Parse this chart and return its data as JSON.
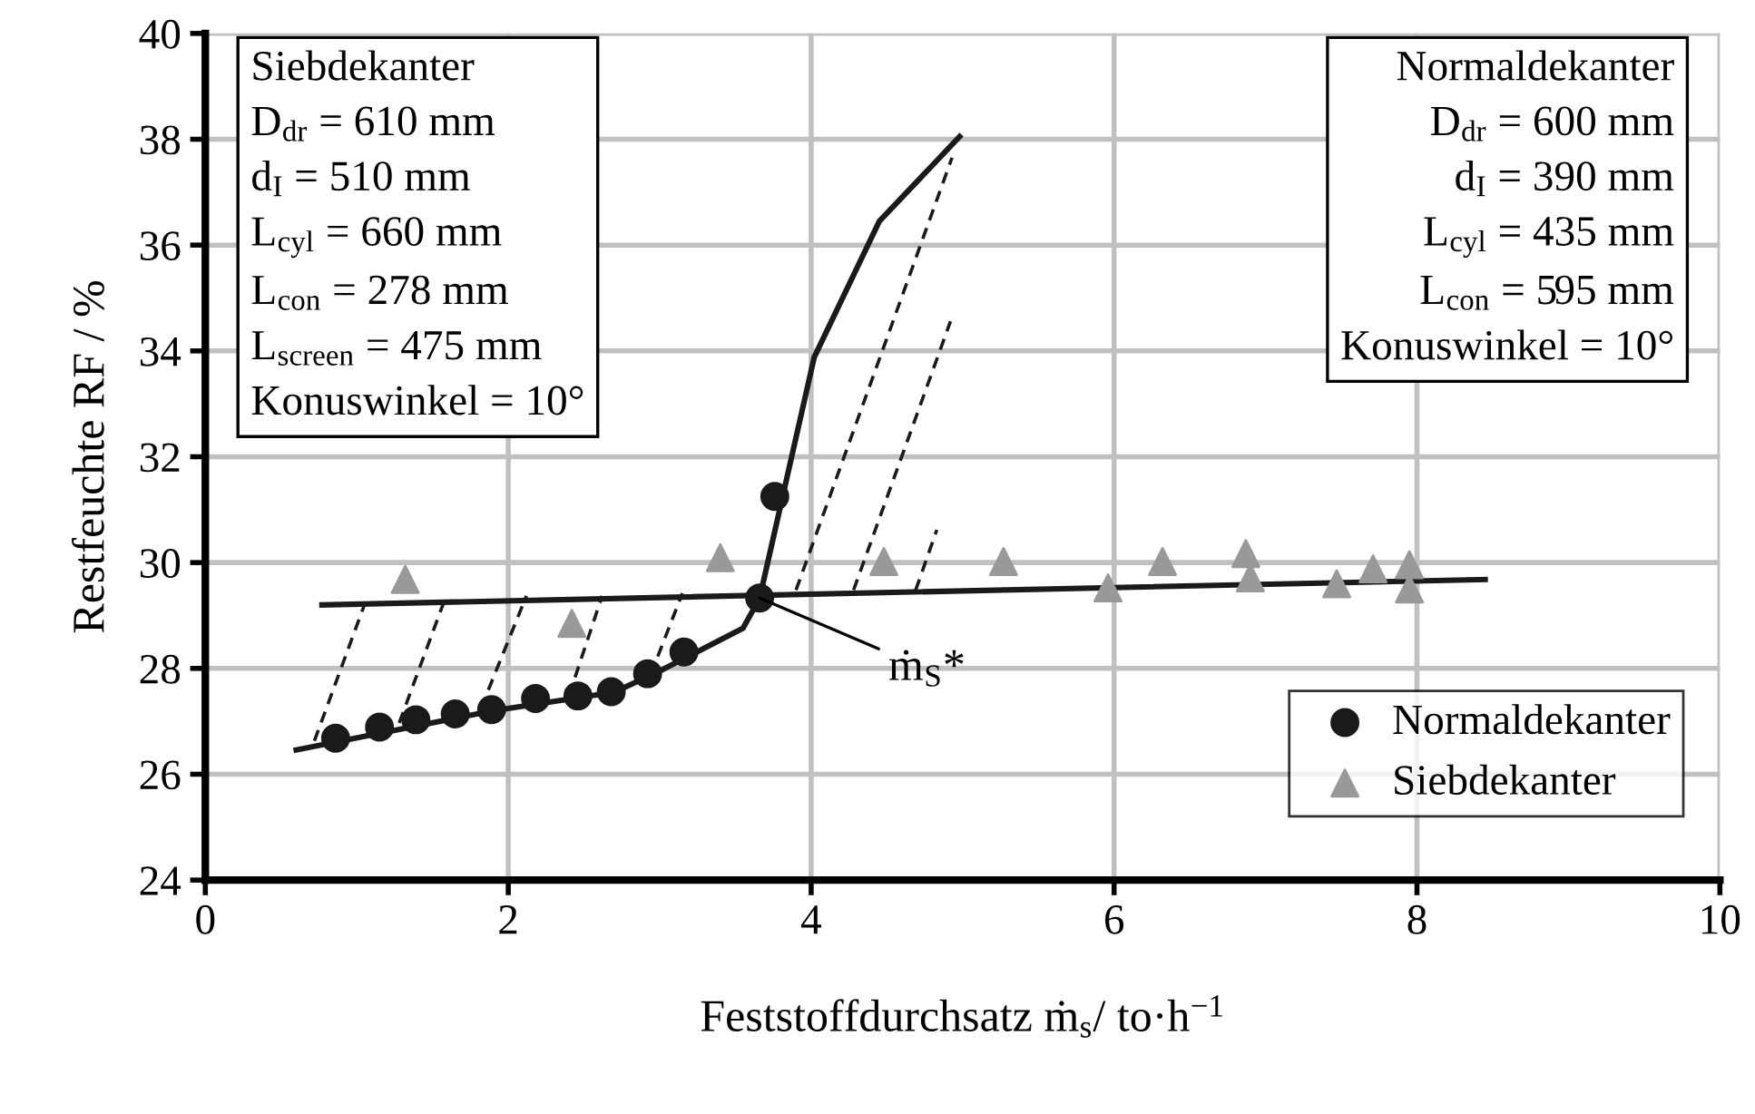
{
  "chart_data": {
    "type": "scatter",
    "xlabel": "Feststoffdurchsatz ṁ$_{s}$/ to·h$^{−1}$",
    "ylabel": "Restfeuchte RF / %",
    "xlim": [
      0,
      10
    ],
    "ylim": [
      24,
      40
    ],
    "xticks": [
      0,
      2,
      4,
      6,
      8,
      10
    ],
    "yticks": [
      24,
      26,
      28,
      30,
      32,
      34,
      36,
      38,
      40
    ],
    "grid": true,
    "legend": "bottom right",
    "series": [
      {
        "name": "Normaldekanter",
        "marker": "circle",
        "color": "#1a1a1a",
        "x": [
          0.86,
          1.15,
          1.39,
          1.65,
          1.89,
          2.18,
          2.46,
          2.68,
          2.92,
          3.16,
          3.66,
          3.76
        ],
        "values": [
          26.68,
          26.89,
          27.03,
          27.14,
          27.22,
          27.43,
          27.48,
          27.56,
          27.9,
          28.31,
          29.33,
          31.25
        ]
      },
      {
        "name": "Siebdekanter",
        "marker": "triangle",
        "color": "#999999",
        "x": [
          1.32,
          2.42,
          3.4,
          4.48,
          5.27,
          5.96,
          6.32,
          6.87,
          6.9,
          7.47,
          7.71,
          7.95,
          7.95
        ],
        "values": [
          29.68,
          28.85,
          30.09,
          30.02,
          30.02,
          29.52,
          30.02,
          30.17,
          29.71,
          29.6,
          29.88,
          29.96,
          29.5
        ]
      },
      {
        "type": "line",
        "line_style": "solid",
        "color": "#1a1a1a",
        "x": [
          0.6,
          1.9,
          2.7,
          3.0,
          3.55,
          3.66,
          4.02,
          4.45,
          4.98
        ],
        "values": [
          26.46,
          27.2,
          27.55,
          27.95,
          28.76,
          29.33,
          33.88,
          36.45,
          38.05
        ]
      },
      {
        "type": "line",
        "line_style": "solid",
        "color": "#1a1a1a",
        "x": [
          0.77,
          8.45
        ],
        "values": [
          29.2,
          29.68
        ]
      },
      {
        "type": "line",
        "line_style": "dashed",
        "color": "#1a1a1a",
        "x": [
          0.72,
          1.05
        ],
        "values": [
          26.63,
          29.2
        ]
      },
      {
        "type": "line",
        "line_style": "dashed",
        "color": "#1a1a1a",
        "x": [
          1.28,
          1.59
        ],
        "values": [
          26.97,
          29.37
        ]
      },
      {
        "type": "line",
        "line_style": "dashed",
        "color": "#1a1a1a",
        "x": [
          1.82,
          2.12
        ],
        "values": [
          27.25,
          29.37
        ]
      },
      {
        "type": "line",
        "line_style": "dashed",
        "color": "#1a1a1a",
        "x": [
          2.4,
          2.62
        ],
        "values": [
          27.48,
          29.37
        ]
      },
      {
        "type": "line",
        "line_style": "dashed",
        "color": "#1a1a1a",
        "x": [
          2.94,
          3.15
        ],
        "values": [
          27.88,
          29.42
        ]
      },
      {
        "type": "line",
        "line_style": "dashed",
        "color": "#1a1a1a",
        "x": [
          3.9,
          4.93
        ],
        "values": [
          29.48,
          37.65
        ]
      },
      {
        "type": "line",
        "line_style": "dashed",
        "color": "#1a1a1a",
        "x": [
          4.28,
          4.92
        ],
        "values": [
          29.48,
          34.56
        ]
      },
      {
        "type": "line",
        "line_style": "dashed",
        "color": "#1a1a1a",
        "x": [
          4.69,
          4.83
        ],
        "values": [
          29.48,
          30.62
        ]
      }
    ],
    "annotations": [
      "Siebdekanter\nD$_{dr}$ = 610 mm\nd$_{I}$ = 510 mm\nL$_{cyl}$ = 660 mm\nL$_{con}$ = 278 mm\nL$_{screen}$ = 475 mm\nKonuswinkel = 10°",
      "Normaldekanter\nD$_{dr}$ = 600 mm\nd$_{I}$ = 390 mm\nL$_{cyl}$ = 435 mm\nL$_{con}$ = 595 mm\nKonuswinkel = 10°",
      {
        "text": "ṁ$_{S}$*",
        "x": 3.66,
        "y": 29.33
      }
    ]
  }
}
